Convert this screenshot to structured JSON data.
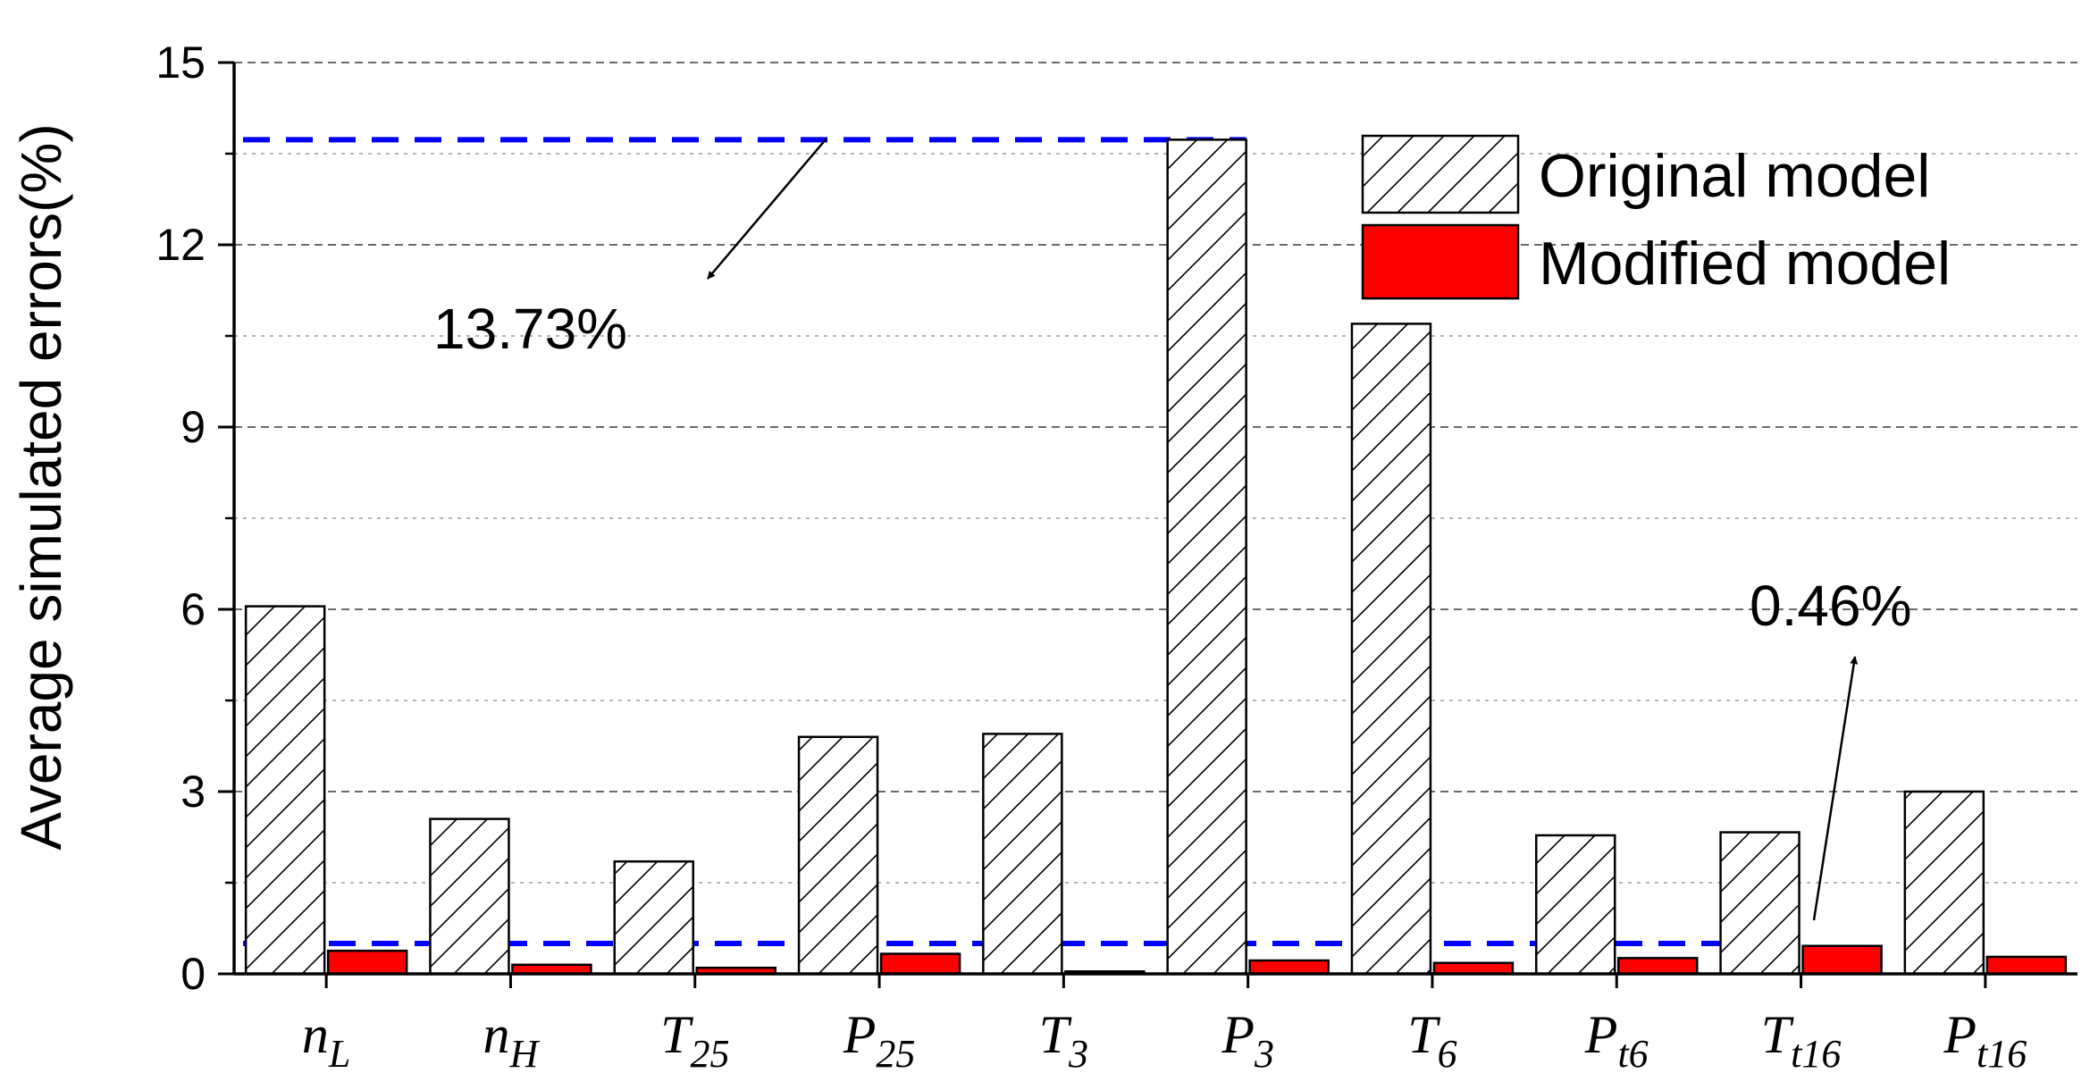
{
  "chart_data": {
    "type": "bar",
    "ylabel": "Average simulated errors(%)",
    "xlabel": "",
    "ylim": [
      0,
      15
    ],
    "yticks": [
      "0",
      "3",
      "6",
      "9",
      "12",
      "15"
    ],
    "grid": true,
    "legend_position": "top-right",
    "categories": [
      {
        "base": "n",
        "sub": "L"
      },
      {
        "base": "n",
        "sub": "H"
      },
      {
        "base": "T",
        "sub": "25"
      },
      {
        "base": "P",
        "sub": "25"
      },
      {
        "base": "T",
        "sub": "3"
      },
      {
        "base": "P",
        "sub": "3"
      },
      {
        "base": "T",
        "sub": "6"
      },
      {
        "base": "P",
        "sub": "t6"
      },
      {
        "base": "T",
        "sub": "t16"
      },
      {
        "base": "P",
        "sub": "t16"
      }
    ],
    "series": [
      {
        "name": "Original model",
        "color": "#ffffff",
        "pattern": "hatch",
        "values": [
          6.05,
          2.55,
          1.85,
          3.9,
          3.95,
          13.73,
          10.7,
          2.28,
          2.33,
          3.0
        ]
      },
      {
        "name": "Modified model",
        "color": "#ff0000",
        "pattern": "solid",
        "values": [
          0.38,
          0.15,
          0.1,
          0.33,
          0.04,
          0.22,
          0.18,
          0.26,
          0.46,
          0.28
        ]
      }
    ],
    "reference_lines": [
      {
        "value": 13.73,
        "color": "#0000ff",
        "style": "dashed"
      },
      {
        "value": 0.5,
        "color": "#0000ff",
        "style": "dashed"
      }
    ],
    "annotations": [
      {
        "text": "13.73%"
      },
      {
        "text": "0.46%"
      }
    ]
  }
}
